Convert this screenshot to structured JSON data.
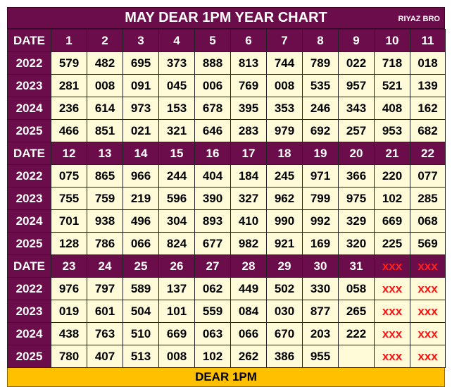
{
  "title": "MAY DEAR 1PM YEAR CHART",
  "brand": "RIYAZ BRO",
  "footer": "DEAR 1PM",
  "colors": {
    "header_bg": "#6b0d4b",
    "cell_bg": "#fffbd9",
    "placeholder_text": "#ff1010",
    "footer_bg": "#ffc000"
  },
  "blocks": [
    {
      "header": [
        "DATE",
        "1",
        "2",
        "3",
        "4",
        "5",
        "6",
        "7",
        "8",
        "9",
        "10",
        "11"
      ],
      "rows": [
        [
          "2022",
          "579",
          "482",
          "695",
          "373",
          "888",
          "813",
          "744",
          "789",
          "022",
          "718",
          "018"
        ],
        [
          "2023",
          "281",
          "008",
          "091",
          "045",
          "006",
          "769",
          "008",
          "535",
          "957",
          "521",
          "139"
        ],
        [
          "2024",
          "236",
          "614",
          "973",
          "153",
          "678",
          "395",
          "353",
          "246",
          "343",
          "408",
          "162"
        ],
        [
          "2025",
          "466",
          "851",
          "021",
          "321",
          "646",
          "283",
          "979",
          "692",
          "257",
          "953",
          "682"
        ]
      ]
    },
    {
      "header": [
        "DATE",
        "12",
        "13",
        "14",
        "15",
        "16",
        "17",
        "18",
        "19",
        "20",
        "21",
        "22"
      ],
      "rows": [
        [
          "2022",
          "075",
          "865",
          "966",
          "244",
          "404",
          "184",
          "245",
          "971",
          "366",
          "220",
          "077"
        ],
        [
          "2023",
          "755",
          "759",
          "219",
          "596",
          "390",
          "327",
          "962",
          "799",
          "975",
          "102",
          "285"
        ],
        [
          "2024",
          "701",
          "938",
          "496",
          "304",
          "893",
          "410",
          "990",
          "992",
          "329",
          "669",
          "068"
        ],
        [
          "2025",
          "128",
          "786",
          "066",
          "824",
          "677",
          "982",
          "921",
          "169",
          "320",
          "225",
          "569"
        ]
      ]
    },
    {
      "header": [
        "DATE",
        "23",
        "24",
        "25",
        "26",
        "27",
        "28",
        "29",
        "30",
        "31",
        "xxx",
        "xxx"
      ],
      "rows": [
        [
          "2022",
          "976",
          "797",
          "589",
          "137",
          "062",
          "449",
          "502",
          "330",
          "058",
          "xxx",
          "xxx"
        ],
        [
          "2023",
          "019",
          "601",
          "504",
          "101",
          "559",
          "084",
          "030",
          "877",
          "265",
          "xxx",
          "xxx"
        ],
        [
          "2024",
          "438",
          "763",
          "510",
          "669",
          "063",
          "066",
          "670",
          "203",
          "222",
          "xxx",
          "xxx"
        ],
        [
          "2025",
          "780",
          "407",
          "513",
          "008",
          "102",
          "262",
          "386",
          "955",
          "",
          "xxx",
          "xxx"
        ]
      ]
    }
  ]
}
